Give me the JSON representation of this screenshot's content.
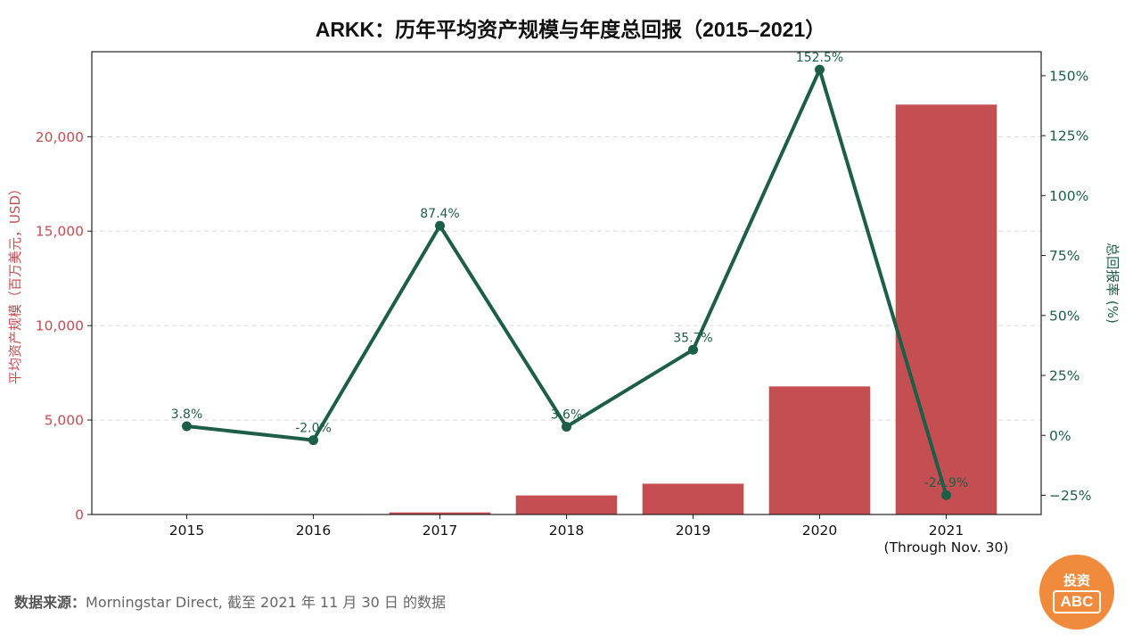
{
  "title": "ARKK：历年平均资产规模与年度总回报（2015–2021）",
  "source": {
    "label": "数据来源：",
    "text": "Morningstar Direct, 截至 2021 年 11 月 30 日 的数据"
  },
  "logo": {
    "top": "投资",
    "box": "ABC"
  },
  "colors": {
    "bar": "#c44e52",
    "line": "#1d5e48",
    "left_axis": "#c44e52",
    "right_axis": "#1d5e48",
    "logo_bg": "#f08a3c"
  },
  "chart_data": {
    "type": "bar+line",
    "categories": [
      "2015",
      "2016",
      "2017",
      "2018",
      "2019",
      "2020",
      "2021"
    ],
    "category_sublabels": [
      "",
      "",
      "",
      "",
      "",
      "",
      "(Through Nov. 30)"
    ],
    "series": [
      {
        "type": "bar",
        "axis": "left",
        "values": [
          20,
          25,
          110,
          1010,
          1630,
          6780,
          21700
        ]
      },
      {
        "type": "line",
        "axis": "right",
        "values": [
          3.8,
          -2.0,
          87.4,
          3.6,
          35.7,
          152.5,
          -24.9
        ],
        "labels": [
          "3.8%",
          "-2.0%",
          "87.4%",
          "3.6%",
          "35.7%",
          "152.5%",
          "-24.9%"
        ]
      }
    ],
    "left_axis": {
      "label": "平均资产规模（百万美元，USD）",
      "ylim": [
        0,
        24500
      ],
      "ticks": [
        0,
        5000,
        10000,
        15000,
        20000
      ],
      "tick_labels": [
        "0",
        "5,000",
        "10,000",
        "15,000",
        "20,000"
      ]
    },
    "right_axis": {
      "label": "总回报率 (%)",
      "ylim": [
        -33,
        160
      ],
      "ticks": [
        -25,
        0,
        25,
        50,
        75,
        100,
        125,
        150
      ],
      "tick_labels": [
        "−25%",
        "0%",
        "25%",
        "50%",
        "75%",
        "100%",
        "125%",
        "150%"
      ]
    },
    "grid": "horizontal-dashed"
  }
}
